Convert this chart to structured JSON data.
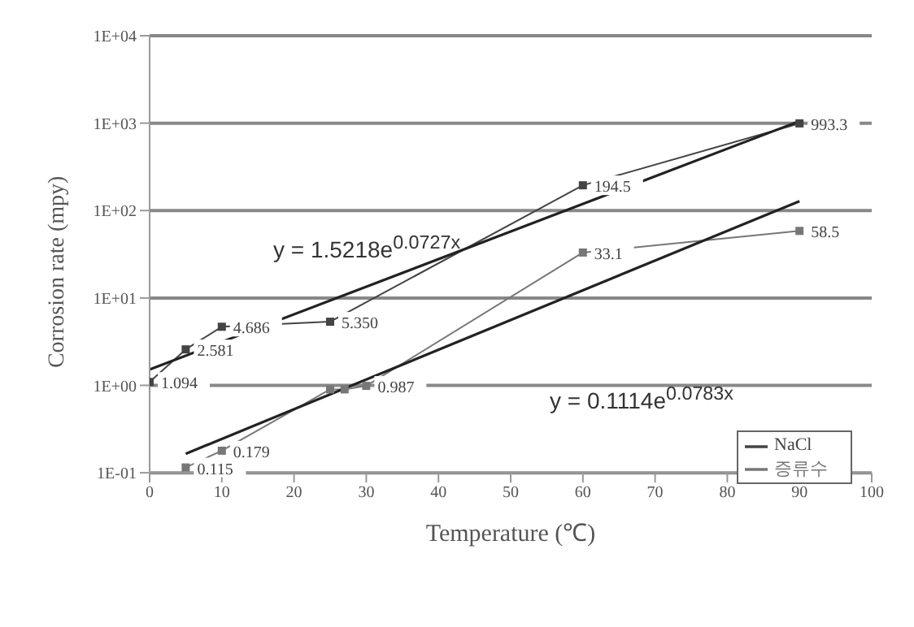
{
  "chart_data": {
    "type": "line",
    "xlabel": "Temperature (℃)",
    "ylabel": "Corrosion rate (mpy)",
    "log": "y",
    "grid": "y",
    "legend": "bottom right",
    "marker": "square",
    "xlim": [
      0,
      100
    ],
    "xticks": [
      0,
      10,
      20,
      30,
      40,
      50,
      60,
      70,
      80,
      90,
      100
    ],
    "ylim": [
      0.1,
      10000
    ],
    "yticks": [
      {
        "value": 0.1,
        "label": "1E-01"
      },
      {
        "value": 1,
        "label": "1E+00"
      },
      {
        "value": 10,
        "label": "1E+01"
      },
      {
        "value": 100,
        "label": "1E+02"
      },
      {
        "value": 1000,
        "label": "1E+03"
      },
      {
        "value": 10000,
        "label": "1E+04"
      }
    ],
    "series": [
      {
        "name": "NaCl",
        "color": "#444444",
        "x": [
          0,
          5,
          10,
          25,
          60,
          90
        ],
        "values": [
          1.094,
          2.581,
          4.686,
          5.35,
          194.5,
          993.3
        ],
        "value_labels": [
          "1.094",
          "2.581",
          "4.686",
          "5.350",
          "194.5",
          "993.3"
        ]
      },
      {
        "name": "증류수",
        "color": "#777777",
        "x": [
          5,
          10,
          25,
          27,
          30,
          60,
          90
        ],
        "values": [
          0.115,
          0.179,
          0.9,
          0.9,
          0.987,
          33.1,
          58.5
        ],
        "value_labels": [
          "0.115",
          "0.179",
          null,
          null,
          "0.987",
          "33.1",
          "58.5"
        ]
      },
      {
        "type": "line",
        "color": "#222222",
        "marker": "none",
        "x": [
          0,
          90
        ],
        "values": [
          1.52,
          1055
        ]
      },
      {
        "type": "line",
        "color": "#222222",
        "marker": "none",
        "x": [
          5,
          90
        ],
        "values": [
          0.165,
          128
        ]
      }
    ],
    "annotations": [
      "y = 1.5218e$^{0.0727x}$",
      "y = 0.1114e$^{0.0783x}$"
    ]
  }
}
